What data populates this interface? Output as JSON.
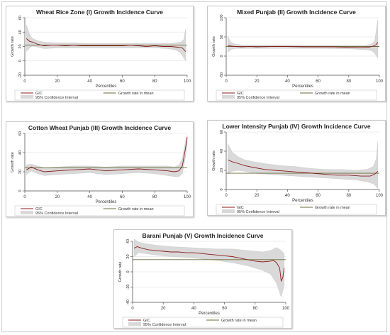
{
  "chart_data": [
    {
      "type": "line",
      "title": "Wheat Rice Zone (I) Growth Incidence Curve",
      "xlabel": "Percentiles",
      "ylabel": "Growth rate",
      "xlim": [
        0,
        100
      ],
      "ylim": [
        -20,
        60
      ],
      "xticks": [
        "0",
        "20",
        "40",
        "60",
        "80",
        "100"
      ],
      "yticks": [
        "-20",
        "0",
        "20",
        "40",
        "60"
      ],
      "legend": [
        "GIC",
        "Growth rate in mean",
        "95% Confidence Interval"
      ],
      "legend_position": "bottom",
      "mean": 22,
      "gic": [
        [
          1,
          31
        ],
        [
          3,
          27
        ],
        [
          5,
          26
        ],
        [
          8,
          23
        ],
        [
          12,
          21
        ],
        [
          16,
          22
        ],
        [
          20,
          22
        ],
        [
          25,
          21
        ],
        [
          30,
          22
        ],
        [
          35,
          21
        ],
        [
          40,
          21
        ],
        [
          45,
          21
        ],
        [
          50,
          21
        ],
        [
          55,
          21
        ],
        [
          60,
          21
        ],
        [
          65,
          22
        ],
        [
          70,
          21
        ],
        [
          75,
          20
        ],
        [
          80,
          21
        ],
        [
          85,
          20
        ],
        [
          90,
          20
        ],
        [
          94,
          19
        ],
        [
          97,
          18
        ],
        [
          99,
          13
        ]
      ],
      "ci_upper": [
        [
          1,
          50
        ],
        [
          3,
          36
        ],
        [
          5,
          31
        ],
        [
          8,
          28
        ],
        [
          12,
          26
        ],
        [
          20,
          25
        ],
        [
          30,
          25
        ],
        [
          40,
          24
        ],
        [
          50,
          24
        ],
        [
          60,
          24
        ],
        [
          70,
          24
        ],
        [
          80,
          24
        ],
        [
          88,
          24
        ],
        [
          93,
          25
        ],
        [
          96,
          26
        ],
        [
          98,
          30
        ],
        [
          99,
          44
        ]
      ],
      "ci_lower": [
        [
          1,
          13
        ],
        [
          3,
          18
        ],
        [
          5,
          21
        ],
        [
          8,
          19
        ],
        [
          12,
          17
        ],
        [
          20,
          18
        ],
        [
          30,
          18
        ],
        [
          40,
          18
        ],
        [
          50,
          18
        ],
        [
          60,
          18
        ],
        [
          70,
          18
        ],
        [
          80,
          18
        ],
        [
          88,
          17
        ],
        [
          93,
          15
        ],
        [
          96,
          11
        ],
        [
          98,
          4
        ],
        [
          99,
          0
        ]
      ]
    },
    {
      "type": "line",
      "title": "Mixed Punjab (II) Growth Incidence Curve",
      "xlabel": "Percentiles",
      "ylabel": "Growth rate",
      "xlim": [
        0,
        100
      ],
      "ylim": [
        -50,
        100
      ],
      "xticks": [
        "0",
        "20",
        "40",
        "60",
        "80",
        "100"
      ],
      "yticks": [
        "-50",
        "0",
        "50",
        "100"
      ],
      "legend": [
        "GIC",
        "Growth rate in mean",
        "95% Confidence Interval"
      ],
      "legend_position": "bottom",
      "mean": 25,
      "gic": [
        [
          1,
          29
        ],
        [
          3,
          26
        ],
        [
          6,
          25
        ],
        [
          10,
          24
        ],
        [
          15,
          25
        ],
        [
          20,
          24
        ],
        [
          30,
          25
        ],
        [
          40,
          25
        ],
        [
          50,
          24
        ],
        [
          60,
          24
        ],
        [
          70,
          24
        ],
        [
          80,
          23
        ],
        [
          88,
          22
        ],
        [
          93,
          23
        ],
        [
          96,
          26
        ],
        [
          98,
          30
        ],
        [
          99,
          36
        ]
      ],
      "ci_upper": [
        [
          1,
          52
        ],
        [
          3,
          36
        ],
        [
          6,
          31
        ],
        [
          10,
          29
        ],
        [
          20,
          29
        ],
        [
          40,
          29
        ],
        [
          60,
          28
        ],
        [
          80,
          28
        ],
        [
          90,
          28
        ],
        [
          95,
          31
        ],
        [
          97,
          40
        ],
        [
          99,
          95
        ]
      ],
      "ci_lower": [
        [
          1,
          10
        ],
        [
          3,
          17
        ],
        [
          6,
          20
        ],
        [
          10,
          20
        ],
        [
          20,
          20
        ],
        [
          40,
          20
        ],
        [
          60,
          20
        ],
        [
          80,
          19
        ],
        [
          90,
          17
        ],
        [
          95,
          14
        ],
        [
          97,
          7
        ],
        [
          99,
          -5
        ]
      ]
    },
    {
      "type": "line",
      "title": "Cotton Wheat Punjab (III) Growth Incidence Curve",
      "xlabel": "Percentiles",
      "ylabel": "Growth rate",
      "xlim": [
        0,
        100
      ],
      "ylim": [
        0,
        60
      ],
      "xticks": [
        "0",
        "20",
        "40",
        "60",
        "80",
        "100"
      ],
      "yticks": [
        "0",
        "20",
        "40",
        "60"
      ],
      "legend": [
        "GIC",
        "Growth rate in mean",
        "95% Confidence Interval"
      ],
      "legend_position": "bottom",
      "mean": 24,
      "gic": [
        [
          1,
          22
        ],
        [
          4,
          25
        ],
        [
          8,
          22
        ],
        [
          12,
          20
        ],
        [
          20,
          21
        ],
        [
          30,
          22
        ],
        [
          40,
          23
        ],
        [
          50,
          21
        ],
        [
          60,
          22
        ],
        [
          70,
          23
        ],
        [
          80,
          22
        ],
        [
          88,
          21
        ],
        [
          92,
          20
        ],
        [
          95,
          21
        ],
        [
          97,
          26
        ],
        [
          99,
          45
        ],
        [
          100,
          56
        ]
      ],
      "ci_upper": [
        [
          1,
          27
        ],
        [
          4,
          28
        ],
        [
          8,
          26
        ],
        [
          12,
          24
        ],
        [
          20,
          25
        ],
        [
          30,
          26
        ],
        [
          40,
          26
        ],
        [
          50,
          25
        ],
        [
          60,
          26
        ],
        [
          70,
          26
        ],
        [
          80,
          26
        ],
        [
          88,
          26
        ],
        [
          92,
          25
        ],
        [
          95,
          27
        ],
        [
          97,
          34
        ],
        [
          99,
          52
        ],
        [
          100,
          58
        ]
      ],
      "ci_lower": [
        [
          1,
          17
        ],
        [
          4,
          21
        ],
        [
          8,
          18
        ],
        [
          12,
          16
        ],
        [
          20,
          17
        ],
        [
          30,
          18
        ],
        [
          40,
          19
        ],
        [
          50,
          17
        ],
        [
          60,
          18
        ],
        [
          70,
          19
        ],
        [
          80,
          18
        ],
        [
          88,
          16
        ],
        [
          92,
          15
        ],
        [
          95,
          15
        ],
        [
          97,
          18
        ],
        [
          99,
          36
        ],
        [
          100,
          50
        ]
      ]
    },
    {
      "type": "line",
      "title": "Lower Intensity Punjab (IV) Growth Incidence Curve",
      "xlabel": "Percentiles",
      "ylabel": "Growth rate",
      "xlim": [
        0,
        100
      ],
      "ylim": [
        0,
        60
      ],
      "xticks": [
        "0",
        "20",
        "40",
        "60",
        "80",
        "100"
      ],
      "yticks": [
        "0",
        "20",
        "40",
        "60"
      ],
      "legend": [
        "GIC",
        "Growth rate in mean",
        "95% Confidence Interval"
      ],
      "legend_position": "bottom",
      "mean": 17,
      "gic": [
        [
          1,
          31
        ],
        [
          4,
          29
        ],
        [
          8,
          27
        ],
        [
          12,
          25
        ],
        [
          18,
          23
        ],
        [
          25,
          21
        ],
        [
          32,
          20
        ],
        [
          40,
          19
        ],
        [
          48,
          18
        ],
        [
          56,
          17
        ],
        [
          64,
          16
        ],
        [
          72,
          15
        ],
        [
          80,
          15
        ],
        [
          88,
          14
        ],
        [
          94,
          14
        ],
        [
          97,
          16
        ],
        [
          99,
          19
        ]
      ],
      "ci_upper": [
        [
          1,
          48
        ],
        [
          4,
          39
        ],
        [
          8,
          34
        ],
        [
          12,
          31
        ],
        [
          18,
          29
        ],
        [
          25,
          27
        ],
        [
          35,
          25
        ],
        [
          45,
          24
        ],
        [
          55,
          22
        ],
        [
          65,
          21
        ],
        [
          75,
          21
        ],
        [
          85,
          20
        ],
        [
          92,
          21
        ],
        [
          96,
          24
        ],
        [
          98,
          32
        ],
        [
          99,
          50
        ]
      ],
      "ci_lower": [
        [
          1,
          16
        ],
        [
          4,
          19
        ],
        [
          8,
          20
        ],
        [
          12,
          19
        ],
        [
          18,
          17
        ],
        [
          25,
          16
        ],
        [
          35,
          15
        ],
        [
          45,
          14
        ],
        [
          55,
          13
        ],
        [
          65,
          12
        ],
        [
          75,
          11
        ],
        [
          85,
          10
        ],
        [
          92,
          8
        ],
        [
          96,
          6
        ],
        [
          98,
          3
        ],
        [
          99,
          1
        ]
      ]
    },
    {
      "type": "line",
      "title": "Barani Punjab (V) Growth Incidence Curve",
      "xlabel": "Percentiles",
      "ylabel": "Growth rate",
      "xlim": [
        0,
        100
      ],
      "ylim": [
        -40,
        40
      ],
      "xticks": [
        "0",
        "20",
        "40",
        "60",
        "80",
        "100"
      ],
      "yticks": [
        "-40",
        "-20",
        "0",
        "20",
        "40"
      ],
      "legend": [
        "GIC",
        "Growth rate in mean",
        "95% Confidence Interval"
      ],
      "legend_position": "bottom",
      "mean": 16,
      "gic": [
        [
          1,
          31
        ],
        [
          3,
          33
        ],
        [
          6,
          31
        ],
        [
          10,
          29
        ],
        [
          15,
          28
        ],
        [
          20,
          27
        ],
        [
          25,
          26
        ],
        [
          30,
          26
        ],
        [
          35,
          25
        ],
        [
          40,
          25
        ],
        [
          45,
          24
        ],
        [
          50,
          23
        ],
        [
          55,
          22
        ],
        [
          60,
          21
        ],
        [
          65,
          20
        ],
        [
          70,
          18
        ],
        [
          75,
          16
        ],
        [
          80,
          14
        ],
        [
          85,
          13
        ],
        [
          90,
          14
        ],
        [
          92,
          15
        ],
        [
          94,
          12
        ],
        [
          96,
          5
        ],
        [
          97,
          -12
        ],
        [
          98,
          -8
        ],
        [
          99,
          5
        ]
      ],
      "ci_upper": [
        [
          1,
          43
        ],
        [
          4,
          39
        ],
        [
          8,
          37
        ],
        [
          15,
          35
        ],
        [
          25,
          33
        ],
        [
          35,
          32
        ],
        [
          45,
          31
        ],
        [
          55,
          30
        ],
        [
          65,
          30
        ],
        [
          75,
          28
        ],
        [
          85,
          26
        ],
        [
          90,
          28
        ],
        [
          94,
          32
        ],
        [
          97,
          28
        ],
        [
          99,
          24
        ]
      ],
      "ci_lower": [
        [
          1,
          20
        ],
        [
          4,
          25
        ],
        [
          8,
          24
        ],
        [
          15,
          22
        ],
        [
          25,
          20
        ],
        [
          35,
          19
        ],
        [
          45,
          17
        ],
        [
          55,
          15
        ],
        [
          65,
          12
        ],
        [
          75,
          8
        ],
        [
          85,
          2
        ],
        [
          90,
          -3
        ],
        [
          94,
          -15
        ],
        [
          97,
          -33
        ],
        [
          99,
          -18
        ]
      ]
    }
  ]
}
